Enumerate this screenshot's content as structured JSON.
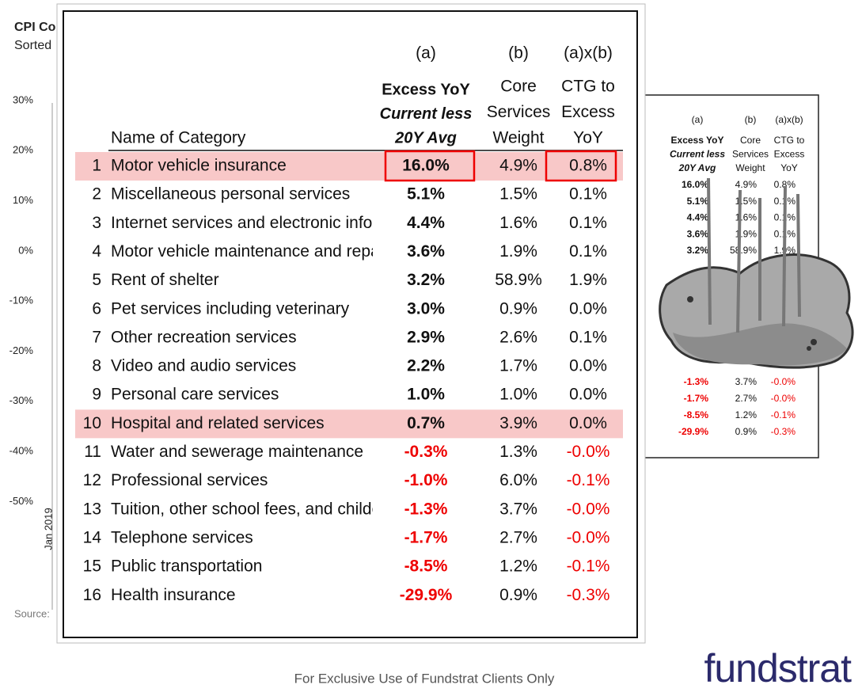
{
  "background_chart": {
    "title": "CPI Co",
    "subtitle": "Sorted",
    "y_labels": [
      "30%",
      "20%",
      "10%",
      "0%",
      "-10%",
      "-20%",
      "-30%",
      "-40%",
      "-50%"
    ],
    "x_label": "Jan 2019",
    "source": "Source:"
  },
  "table": {
    "header": {
      "col_a_tag": "(a)",
      "col_b_tag": "(b)",
      "col_c_tag": "(a)x(b)",
      "name": "Name of Category",
      "col_a": [
        "Excess YoY",
        "Current less",
        "20Y Avg"
      ],
      "col_b": [
        "Core",
        "Services",
        "Weight"
      ],
      "col_c": [
        "CTG to",
        "Excess",
        "YoY"
      ]
    },
    "rows": [
      {
        "rank": "1",
        "name": "Motor vehicle insurance",
        "a": "16.0%",
        "b": "4.9%",
        "c": "0.8%",
        "highlight": true
      },
      {
        "rank": "2",
        "name": "Miscellaneous personal services",
        "a": "5.1%",
        "b": "1.5%",
        "c": "0.1%"
      },
      {
        "rank": "3",
        "name": "Internet services and electronic info",
        "a": "4.4%",
        "b": "1.6%",
        "c": "0.1%"
      },
      {
        "rank": "4",
        "name": "Motor vehicle maintenance and repair",
        "a": "3.6%",
        "b": "1.9%",
        "c": "0.1%"
      },
      {
        "rank": "5",
        "name": "Rent of shelter",
        "a": "3.2%",
        "b": "58.9%",
        "c": "1.9%"
      },
      {
        "rank": "6",
        "name": "Pet services including veterinary",
        "a": "3.0%",
        "b": "0.9%",
        "c": "0.0%"
      },
      {
        "rank": "7",
        "name": "Other recreation services",
        "a": "2.9%",
        "b": "2.6%",
        "c": "0.1%"
      },
      {
        "rank": "8",
        "name": "Video and audio services",
        "a": "2.2%",
        "b": "1.7%",
        "c": "0.0%"
      },
      {
        "rank": "9",
        "name": "Personal care services",
        "a": "1.0%",
        "b": "1.0%",
        "c": "0.0%"
      },
      {
        "rank": "10",
        "name": "Hospital and related services",
        "a": "0.7%",
        "b": "3.9%",
        "c": "0.0%",
        "highlight": true
      },
      {
        "rank": "11",
        "name": "Water and sewerage maintenance",
        "a": "-0.3%",
        "b": "1.3%",
        "c": "-0.0%"
      },
      {
        "rank": "12",
        "name": "Professional services",
        "a": "-1.0%",
        "b": "6.0%",
        "c": "-0.1%"
      },
      {
        "rank": "13",
        "name": "Tuition, other school fees, and childcare",
        "a": "-1.3%",
        "b": "3.7%",
        "c": "-0.0%"
      },
      {
        "rank": "14",
        "name": "Telephone services",
        "a": "-1.7%",
        "b": "2.7%",
        "c": "-0.0%"
      },
      {
        "rank": "15",
        "name": "Public transportation",
        "a": "-8.5%",
        "b": "1.2%",
        "c": "-0.1%"
      },
      {
        "rank": "16",
        "name": "Health insurance",
        "a": "-29.9%",
        "b": "0.9%",
        "c": "-0.3%"
      }
    ]
  },
  "behind_table": {
    "header": {
      "col_a_tag": "(a)",
      "col_b_tag": "(b)",
      "col_c_tag": "(a)x(b)",
      "col_a": [
        "Excess YoY",
        "Current less",
        "20Y Avg"
      ],
      "col_b": [
        "Core",
        "Services",
        "Weight"
      ],
      "col_c": [
        "CTG to",
        "Excess",
        "YoY"
      ]
    },
    "top_rows": [
      [
        "16.0%",
        "4.9%",
        "0.8%"
      ],
      [
        "5.1%",
        "1.5%",
        "0.1%"
      ],
      [
        "4.4%",
        "1.6%",
        "0.1%"
      ],
      [
        "3.6%",
        "1.9%",
        "0.1%"
      ],
      [
        "3.2%",
        "58.9%",
        "1.9%"
      ]
    ],
    "bottom_rows": [
      [
        "-1.3%",
        "3.7%",
        "-0.0%"
      ],
      [
        "-1.7%",
        "2.7%",
        "-0.0%"
      ],
      [
        "-8.5%",
        "1.2%",
        "-0.1%"
      ],
      [
        "-29.9%",
        "0.9%",
        "-0.3%"
      ]
    ]
  },
  "footer": {
    "notice": "For Exclusive Use of Fundstrat Clients Only",
    "logo": "fundstrat"
  }
}
